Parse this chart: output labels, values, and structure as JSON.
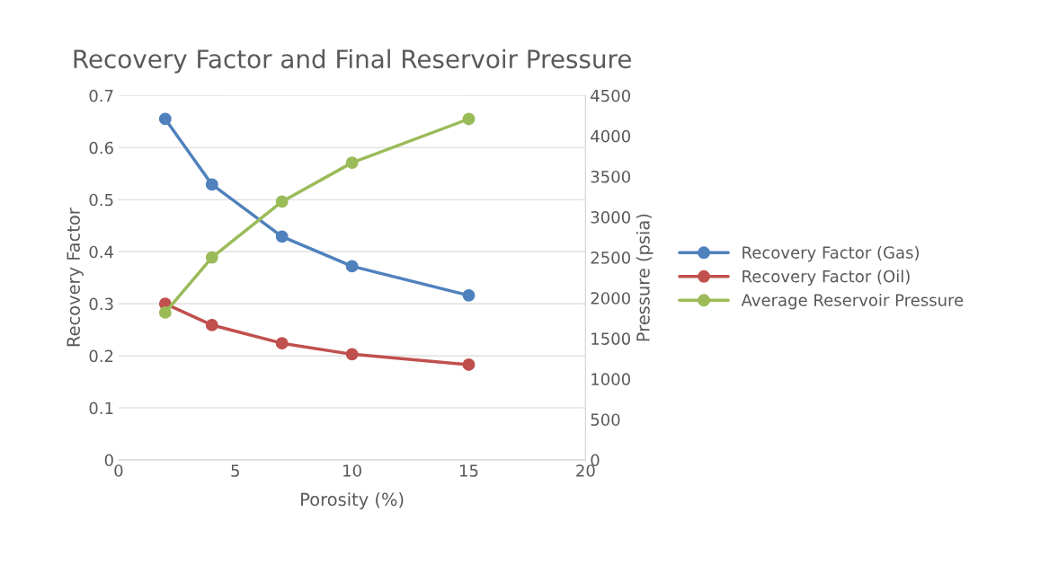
{
  "chart_data": {
    "type": "line",
    "title": "Recovery Factor and Final Reservoir Pressure",
    "xlabel": "Porosity (%)",
    "ylabel": "Recovery Factor",
    "y2label": "Pressure (psia)",
    "x": [
      2,
      4,
      7,
      10,
      15
    ],
    "series": [
      {
        "name": "Recovery Factor (Gas)",
        "color": "#4f81bd",
        "values": [
          0.655,
          0.529,
          0.429,
          0.372,
          0.316
        ]
      },
      {
        "name": "Recovery Factor (Oil)",
        "color": "#c0504d",
        "values": [
          0.3,
          0.259,
          0.224,
          0.203,
          0.183
        ]
      },
      {
        "name": "Average Reservoir Pressure",
        "color": "#9bbb59",
        "axis": "y2",
        "values": [
          1820,
          2500,
          3190,
          3670,
          4210
        ]
      }
    ],
    "xlim": [
      0,
      20
    ],
    "xticks": [
      0,
      5,
      10,
      15,
      20
    ],
    "ylim": [
      0,
      0.7
    ],
    "yticks": [
      0,
      0.1,
      0.2,
      0.3,
      0.4,
      0.5,
      0.6,
      0.7
    ],
    "y2lim": [
      0,
      4500
    ],
    "y2ticks": [
      0,
      500,
      1000,
      1500,
      2000,
      2500,
      3000,
      3500,
      4000,
      4500
    ],
    "grid": "y",
    "legend": "right",
    "marker": "circle",
    "line_style": "solid"
  }
}
